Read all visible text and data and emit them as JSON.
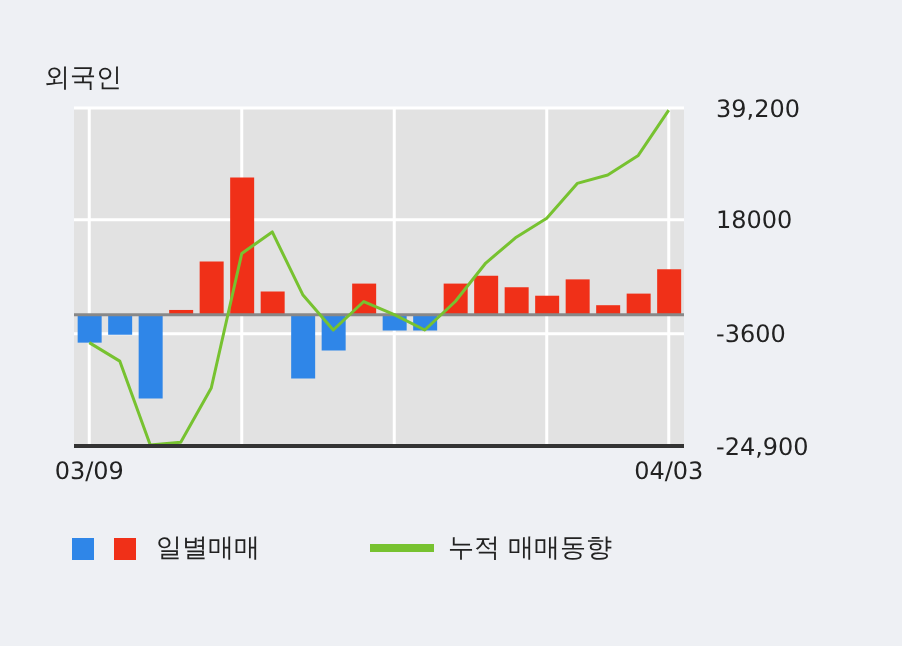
{
  "chart_data": {
    "type": "bar",
    "title": "외국인",
    "categories": [
      "03/09",
      null,
      null,
      null,
      null,
      null,
      null,
      null,
      null,
      null,
      null,
      null,
      null,
      null,
      null,
      null,
      null,
      null,
      null,
      "04/03"
    ],
    "series": [
      {
        "name": "일별매매",
        "colors": [
          "#2f86e8",
          "#2f86e8",
          "#2f86e8",
          "#f03018",
          "#f03018",
          "#f03018",
          "#f03018",
          "#2f86e8",
          "#2f86e8",
          "#f03018",
          "#2f86e8",
          "#2f86e8",
          "#f03018",
          "#f03018",
          "#f03018",
          "#f03018",
          "#f03018",
          "#f03018",
          "#f03018",
          "#f03018"
        ],
        "values": [
          -5300,
          -3800,
          -15900,
          900,
          10100,
          26000,
          4400,
          -12100,
          -6800,
          5900,
          -3000,
          -3000,
          5900,
          7400,
          5200,
          3600,
          6700,
          1800,
          4000,
          8600
        ]
      },
      {
        "name": "누적 매매동향",
        "type": "line",
        "color": "#77c230",
        "values": [
          -5300,
          -8800,
          -24700,
          -24200,
          -13900,
          11600,
          15700,
          3800,
          -2900,
          2500,
          0,
          -2900,
          2500,
          9800,
          14700,
          18300,
          24900,
          26500,
          30200,
          38800
        ]
      }
    ],
    "ylim": [
      -24900,
      39200
    ],
    "yticks": [
      {
        "value": -24900,
        "label": "-24,900"
      },
      -3600,
      18000,
      {
        "value": 39200,
        "label": "39,200"
      }
    ],
    "ref_lines": [
      {
        "axis": "y",
        "value": 0,
        "color": "#888888"
      }
    ],
    "grid": true,
    "legend": "bottom",
    "marker": "none",
    "line_style": "solid"
  }
}
